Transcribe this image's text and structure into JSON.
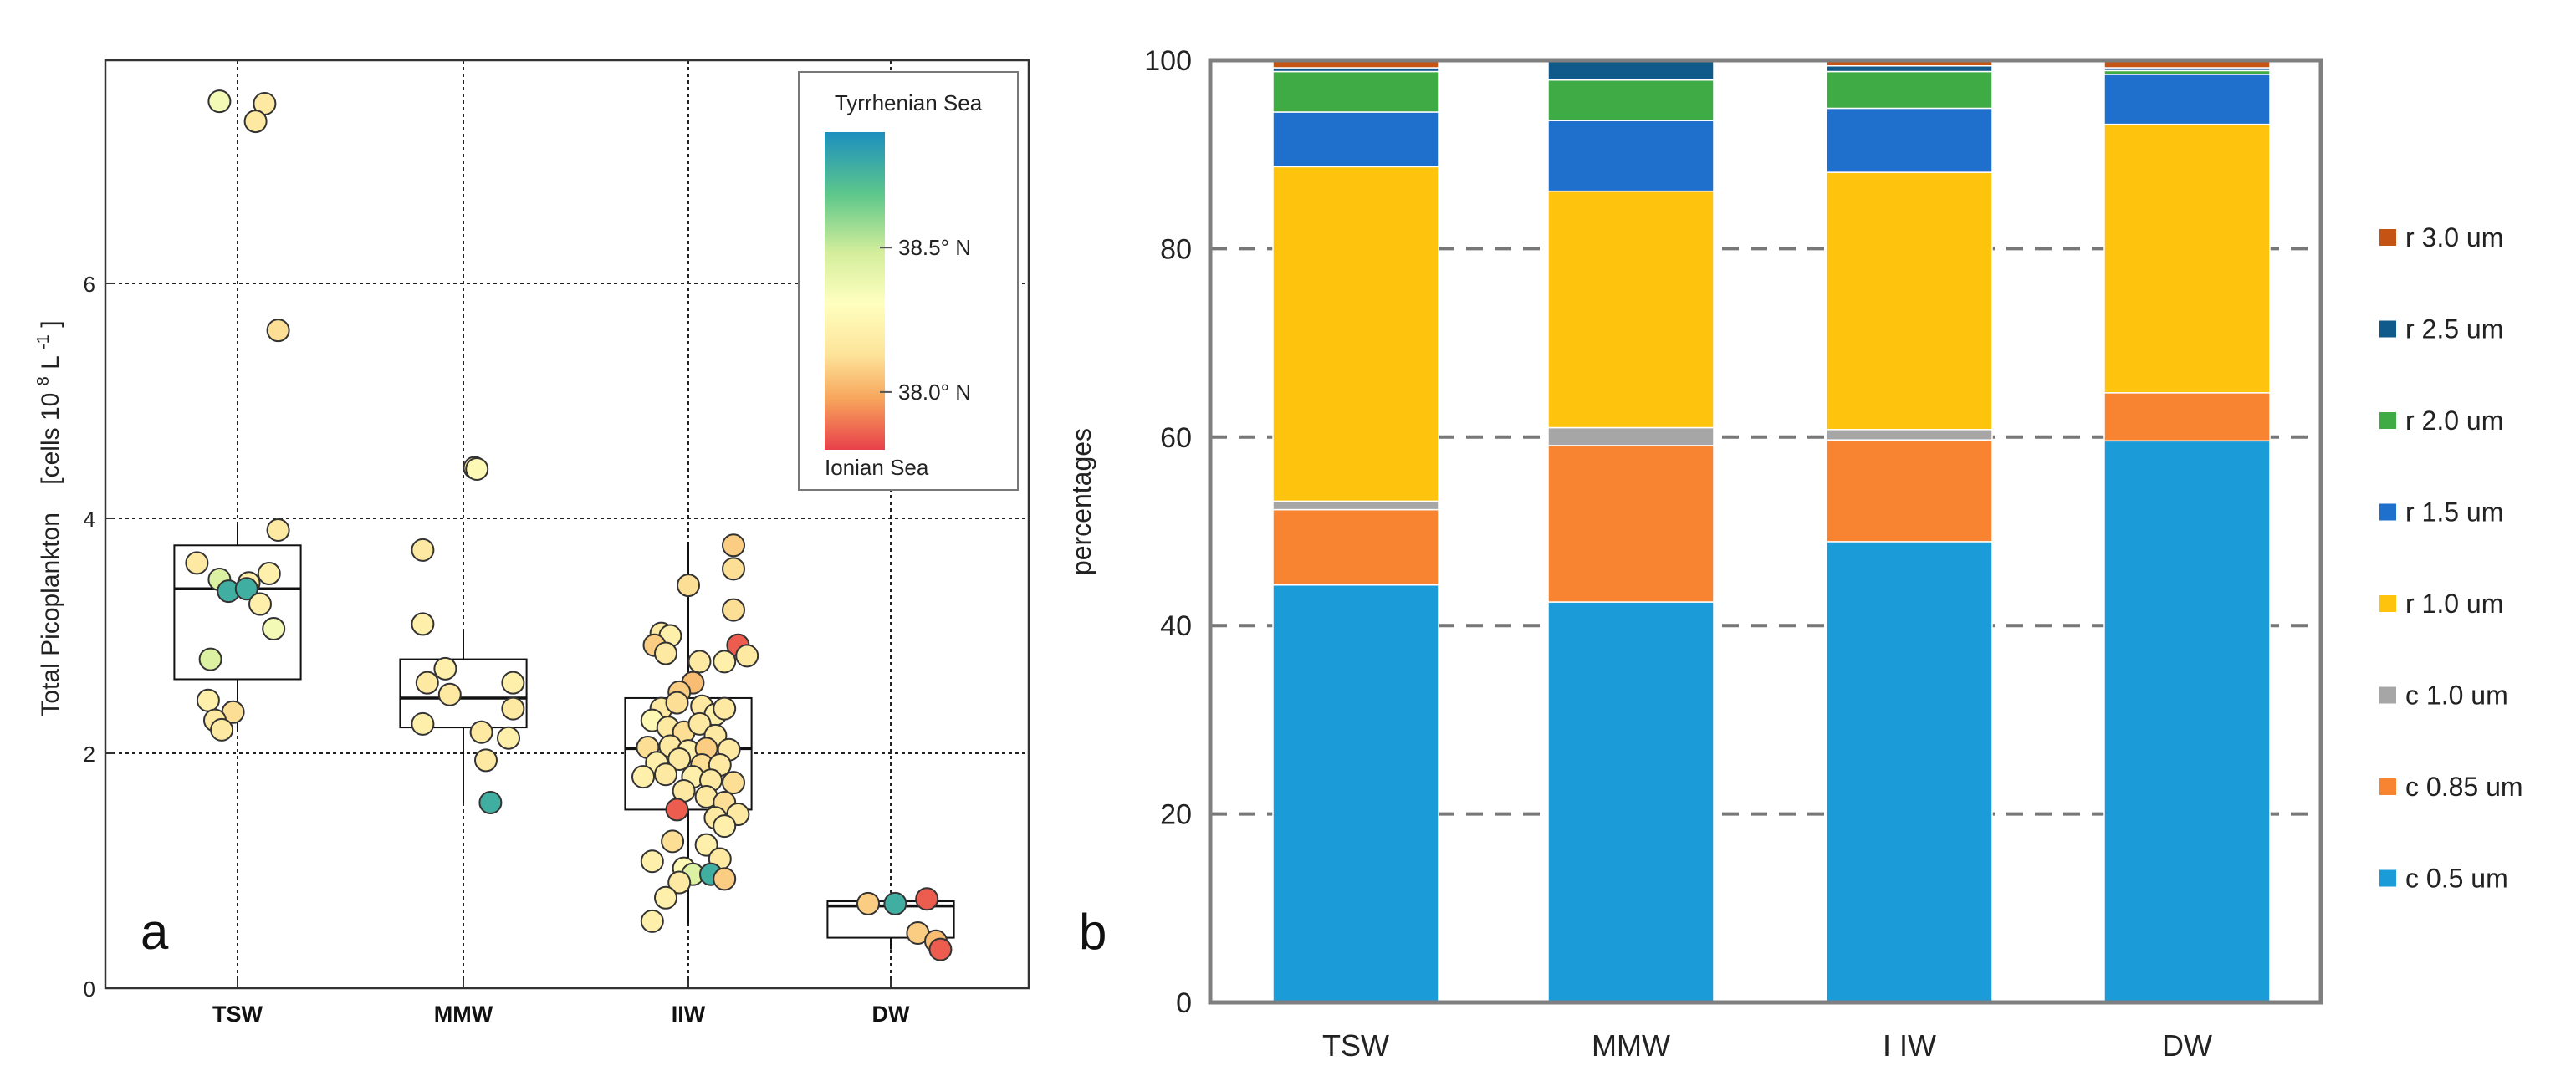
{
  "chart_data": [
    {
      "type": "scatter",
      "panel_label": "a",
      "title": "",
      "xlabel": "",
      "ylabel": "Total Picoplankton",
      "ylabel_units": "[cells 10",
      "ylabel_units_exp": "8",
      "ylabel_units_suffix": " L",
      "ylabel_units_suffix_exp": "-1",
      "ylabel_units_close": "]",
      "categories": [
        "TSW",
        "MMW",
        "IIW",
        "DW"
      ],
      "ylim": [
        0,
        7.9
      ],
      "yticks": [
        0,
        2,
        4,
        6
      ],
      "grid": true,
      "boxplots": [
        {
          "group": "TSW",
          "q1": 2.63,
          "median": 3.4,
          "q3": 3.77,
          "whisker_low": 2.18,
          "whisker_high": 3.95
        },
        {
          "group": "MMW",
          "q1": 2.22,
          "median": 2.47,
          "q3": 2.8,
          "whisker_low": 1.58,
          "whisker_high": 3.05
        },
        {
          "group": "IIW",
          "q1": 1.52,
          "median": 2.04,
          "q3": 2.47,
          "whisker_low": 0.55,
          "whisker_high": 3.8
        },
        {
          "group": "DW",
          "q1": 0.43,
          "median": 0.7,
          "q3": 0.74,
          "whisker_low": 0.33,
          "whisker_high": 0.76
        }
      ],
      "points": [
        {
          "group": "TSW",
          "dx": -0.08,
          "y": 7.55,
          "lat": 38.4
        },
        {
          "group": "TSW",
          "dx": 0.12,
          "y": 7.53,
          "lat": 38.2
        },
        {
          "group": "TSW",
          "dx": 0.08,
          "y": 7.38,
          "lat": 38.2
        },
        {
          "group": "TSW",
          "dx": 0.18,
          "y": 5.6,
          "lat": 38.15
        },
        {
          "group": "TSW",
          "dx": 0.18,
          "y": 3.9,
          "lat": 38.2
        },
        {
          "group": "TSW",
          "dx": -0.18,
          "y": 3.62,
          "lat": 38.2
        },
        {
          "group": "TSW",
          "dx": -0.08,
          "y": 3.48,
          "lat": 38.5
        },
        {
          "group": "TSW",
          "dx": 0.05,
          "y": 3.45,
          "lat": 38.25
        },
        {
          "group": "TSW",
          "dx": 0.14,
          "y": 3.53,
          "lat": 38.25
        },
        {
          "group": "TSW",
          "dx": -0.04,
          "y": 3.38,
          "lat": 38.8
        },
        {
          "group": "TSW",
          "dx": 0.04,
          "y": 3.4,
          "lat": 38.8
        },
        {
          "group": "TSW",
          "dx": 0.1,
          "y": 3.27,
          "lat": 38.25
        },
        {
          "group": "TSW",
          "dx": 0.16,
          "y": 3.06,
          "lat": 38.4
        },
        {
          "group": "TSW",
          "dx": -0.12,
          "y": 2.8,
          "lat": 38.5
        },
        {
          "group": "TSW",
          "dx": -0.13,
          "y": 2.45,
          "lat": 38.25
        },
        {
          "group": "TSW",
          "dx": -0.02,
          "y": 2.35,
          "lat": 38.15
        },
        {
          "group": "TSW",
          "dx": -0.1,
          "y": 2.28,
          "lat": 38.2
        },
        {
          "group": "TSW",
          "dx": -0.07,
          "y": 2.2,
          "lat": 38.2
        },
        {
          "group": "MMW",
          "dx": 0.05,
          "y": 4.43,
          "lat": 38.2
        },
        {
          "group": "MMW",
          "dx": 0.06,
          "y": 4.42,
          "lat": 38.3
        },
        {
          "group": "MMW",
          "dx": -0.18,
          "y": 3.73,
          "lat": 38.2
        },
        {
          "group": "MMW",
          "dx": -0.18,
          "y": 3.1,
          "lat": 38.25
        },
        {
          "group": "MMW",
          "dx": -0.08,
          "y": 2.72,
          "lat": 38.25
        },
        {
          "group": "MMW",
          "dx": -0.16,
          "y": 2.6,
          "lat": 38.2
        },
        {
          "group": "MMW",
          "dx": -0.06,
          "y": 2.5,
          "lat": 38.2
        },
        {
          "group": "MMW",
          "dx": 0.22,
          "y": 2.6,
          "lat": 38.25
        },
        {
          "group": "MMW",
          "dx": 0.22,
          "y": 2.38,
          "lat": 38.2
        },
        {
          "group": "MMW",
          "dx": -0.18,
          "y": 2.25,
          "lat": 38.25
        },
        {
          "group": "MMW",
          "dx": 0.08,
          "y": 2.18,
          "lat": 38.2
        },
        {
          "group": "MMW",
          "dx": 0.2,
          "y": 2.13,
          "lat": 38.25
        },
        {
          "group": "MMW",
          "dx": 0.1,
          "y": 1.94,
          "lat": 38.2
        },
        {
          "group": "MMW",
          "dx": 0.12,
          "y": 1.58,
          "lat": 38.8
        },
        {
          "group": "IIW",
          "dx": -0.12,
          "y": 3.02,
          "lat": 38.2
        },
        {
          "group": "IIW",
          "dx": -0.08,
          "y": 3.0,
          "lat": 38.25
        },
        {
          "group": "IIW",
          "dx": 0.0,
          "y": 3.43,
          "lat": 38.15
        },
        {
          "group": "IIW",
          "dx": 0.2,
          "y": 3.77,
          "lat": 38.1
        },
        {
          "group": "IIW",
          "dx": 0.2,
          "y": 3.57,
          "lat": 38.15
        },
        {
          "group": "IIW",
          "dx": 0.2,
          "y": 3.22,
          "lat": 38.15
        },
        {
          "group": "IIW",
          "dx": 0.22,
          "y": 2.92,
          "lat": 37.85
        },
        {
          "group": "IIW",
          "dx": -0.15,
          "y": 2.92,
          "lat": 38.1
        },
        {
          "group": "IIW",
          "dx": -0.1,
          "y": 2.85,
          "lat": 38.2
        },
        {
          "group": "IIW",
          "dx": 0.05,
          "y": 2.78,
          "lat": 38.2
        },
        {
          "group": "IIW",
          "dx": 0.16,
          "y": 2.78,
          "lat": 38.25
        },
        {
          "group": "IIW",
          "dx": 0.26,
          "y": 2.83,
          "lat": 38.2
        },
        {
          "group": "IIW",
          "dx": 0.02,
          "y": 2.6,
          "lat": 38.05
        },
        {
          "group": "IIW",
          "dx": -0.04,
          "y": 2.52,
          "lat": 38.1
        },
        {
          "group": "IIW",
          "dx": -0.12,
          "y": 2.38,
          "lat": 38.2
        },
        {
          "group": "IIW",
          "dx": -0.05,
          "y": 2.43,
          "lat": 38.15
        },
        {
          "group": "IIW",
          "dx": 0.06,
          "y": 2.4,
          "lat": 38.2
        },
        {
          "group": "IIW",
          "dx": 0.12,
          "y": 2.33,
          "lat": 38.25
        },
        {
          "group": "IIW",
          "dx": 0.16,
          "y": 2.38,
          "lat": 38.2
        },
        {
          "group": "IIW",
          "dx": -0.16,
          "y": 2.28,
          "lat": 38.3
        },
        {
          "group": "IIW",
          "dx": -0.09,
          "y": 2.22,
          "lat": 38.2
        },
        {
          "group": "IIW",
          "dx": -0.02,
          "y": 2.18,
          "lat": 38.15
        },
        {
          "group": "IIW",
          "dx": 0.05,
          "y": 2.25,
          "lat": 38.2
        },
        {
          "group": "IIW",
          "dx": 0.12,
          "y": 2.15,
          "lat": 38.2
        },
        {
          "group": "IIW",
          "dx": -0.18,
          "y": 2.05,
          "lat": 38.15
        },
        {
          "group": "IIW",
          "dx": -0.08,
          "y": 2.06,
          "lat": 38.2
        },
        {
          "group": "IIW",
          "dx": 0.0,
          "y": 2.02,
          "lat": 38.25
        },
        {
          "group": "IIW",
          "dx": 0.08,
          "y": 2.04,
          "lat": 38.1
        },
        {
          "group": "IIW",
          "dx": 0.18,
          "y": 2.03,
          "lat": 38.2
        },
        {
          "group": "IIW",
          "dx": -0.14,
          "y": 1.92,
          "lat": 38.25
        },
        {
          "group": "IIW",
          "dx": -0.04,
          "y": 1.95,
          "lat": 38.2
        },
        {
          "group": "IIW",
          "dx": 0.06,
          "y": 1.9,
          "lat": 38.15
        },
        {
          "group": "IIW",
          "dx": 0.14,
          "y": 1.9,
          "lat": 38.2
        },
        {
          "group": "IIW",
          "dx": -0.1,
          "y": 1.82,
          "lat": 38.2
        },
        {
          "group": "IIW",
          "dx": 0.02,
          "y": 1.8,
          "lat": 38.25
        },
        {
          "group": "IIW",
          "dx": 0.1,
          "y": 1.77,
          "lat": 38.2
        },
        {
          "group": "IIW",
          "dx": 0.2,
          "y": 1.75,
          "lat": 38.15
        },
        {
          "group": "IIW",
          "dx": -0.2,
          "y": 1.8,
          "lat": 38.25
        },
        {
          "group": "IIW",
          "dx": -0.02,
          "y": 1.68,
          "lat": 38.2
        },
        {
          "group": "IIW",
          "dx": 0.08,
          "y": 1.63,
          "lat": 38.2
        },
        {
          "group": "IIW",
          "dx": 0.16,
          "y": 1.58,
          "lat": 38.15
        },
        {
          "group": "IIW",
          "dx": 0.22,
          "y": 1.48,
          "lat": 38.2
        },
        {
          "group": "IIW",
          "dx": -0.05,
          "y": 1.52,
          "lat": 37.85
        },
        {
          "group": "IIW",
          "dx": 0.12,
          "y": 1.45,
          "lat": 38.2
        },
        {
          "group": "IIW",
          "dx": 0.16,
          "y": 1.38,
          "lat": 38.25
        },
        {
          "group": "IIW",
          "dx": -0.07,
          "y": 1.25,
          "lat": 38.15
        },
        {
          "group": "IIW",
          "dx": 0.08,
          "y": 1.22,
          "lat": 38.25
        },
        {
          "group": "IIW",
          "dx": 0.14,
          "y": 1.1,
          "lat": 38.2
        },
        {
          "group": "IIW",
          "dx": -0.16,
          "y": 1.08,
          "lat": 38.25
        },
        {
          "group": "IIW",
          "dx": -0.02,
          "y": 1.02,
          "lat": 38.3
        },
        {
          "group": "IIW",
          "dx": 0.02,
          "y": 0.97,
          "lat": 38.5
        },
        {
          "group": "IIW",
          "dx": 0.1,
          "y": 0.97,
          "lat": 38.8
        },
        {
          "group": "IIW",
          "dx": 0.16,
          "y": 0.93,
          "lat": 38.1
        },
        {
          "group": "IIW",
          "dx": -0.04,
          "y": 0.9,
          "lat": 38.2
        },
        {
          "group": "IIW",
          "dx": -0.1,
          "y": 0.77,
          "lat": 38.25
        },
        {
          "group": "IIW",
          "dx": -0.16,
          "y": 0.57,
          "lat": 38.25
        },
        {
          "group": "DW",
          "dx": -0.1,
          "y": 0.72,
          "lat": 38.1
        },
        {
          "group": "DW",
          "dx": 0.02,
          "y": 0.72,
          "lat": 38.8
        },
        {
          "group": "DW",
          "dx": 0.16,
          "y": 0.76,
          "lat": 37.85
        },
        {
          "group": "DW",
          "dx": 0.12,
          "y": 0.47,
          "lat": 38.1
        },
        {
          "group": "DW",
          "dx": 0.2,
          "y": 0.4,
          "lat": 38.05
        },
        {
          "group": "DW",
          "dx": 0.22,
          "y": 0.33,
          "lat": 37.85
        }
      ],
      "colorbar": {
        "top_label": "Tyrrhenian Sea",
        "bottom_label": "Ionian Sea",
        "range": [
          37.8,
          38.9
        ],
        "ticks": [
          {
            "value": 38.5,
            "label": "38.5° N"
          },
          {
            "value": 38.0,
            "label": "38.0° N"
          }
        ],
        "colors": [
          "#e8404a",
          "#f7a55c",
          "#fde49a",
          "#ffffbf",
          "#d4ee9c",
          "#5fc88a",
          "#1c8fbf"
        ]
      }
    },
    {
      "type": "bar",
      "stacked": true,
      "panel_label": "b",
      "title": "",
      "xlabel": "",
      "ylabel": "percentages",
      "categories": [
        "TSW",
        "MMW",
        "I IW",
        "DW"
      ],
      "ylim": [
        0,
        100
      ],
      "yticks": [
        0,
        20,
        40,
        60,
        80,
        100
      ],
      "grid": true,
      "legend_position": "right",
      "series": [
        {
          "name": "c 0.5 um",
          "color": "#1b9bd7",
          "values": [
            44.3,
            42.5,
            48.9,
            59.6
          ]
        },
        {
          "name": "c 0.85 um",
          "color": "#f88330",
          "values": [
            8.0,
            16.6,
            10.8,
            5.1
          ]
        },
        {
          "name": "c 1.0 um",
          "color": "#a6a6a6",
          "values": [
            0.9,
            1.9,
            1.1,
            0.0
          ]
        },
        {
          "name": "r 1.0 um",
          "color": "#fdc30d",
          "values": [
            35.5,
            25.1,
            27.3,
            28.5
          ]
        },
        {
          "name": "r 1.5 um",
          "color": "#1f6fcc",
          "values": [
            5.8,
            7.5,
            6.8,
            5.3
          ]
        },
        {
          "name": "r 2.0 um",
          "color": "#3fab45",
          "values": [
            4.3,
            4.3,
            3.9,
            0.4
          ]
        },
        {
          "name": "r 2.5 um",
          "color": "#0f5a8a",
          "values": [
            0.4,
            2.1,
            0.6,
            0.3
          ]
        },
        {
          "name": "r 3.0 um",
          "color": "#c55313",
          "values": [
            0.8,
            0.0,
            0.6,
            0.8
          ]
        }
      ]
    }
  ]
}
